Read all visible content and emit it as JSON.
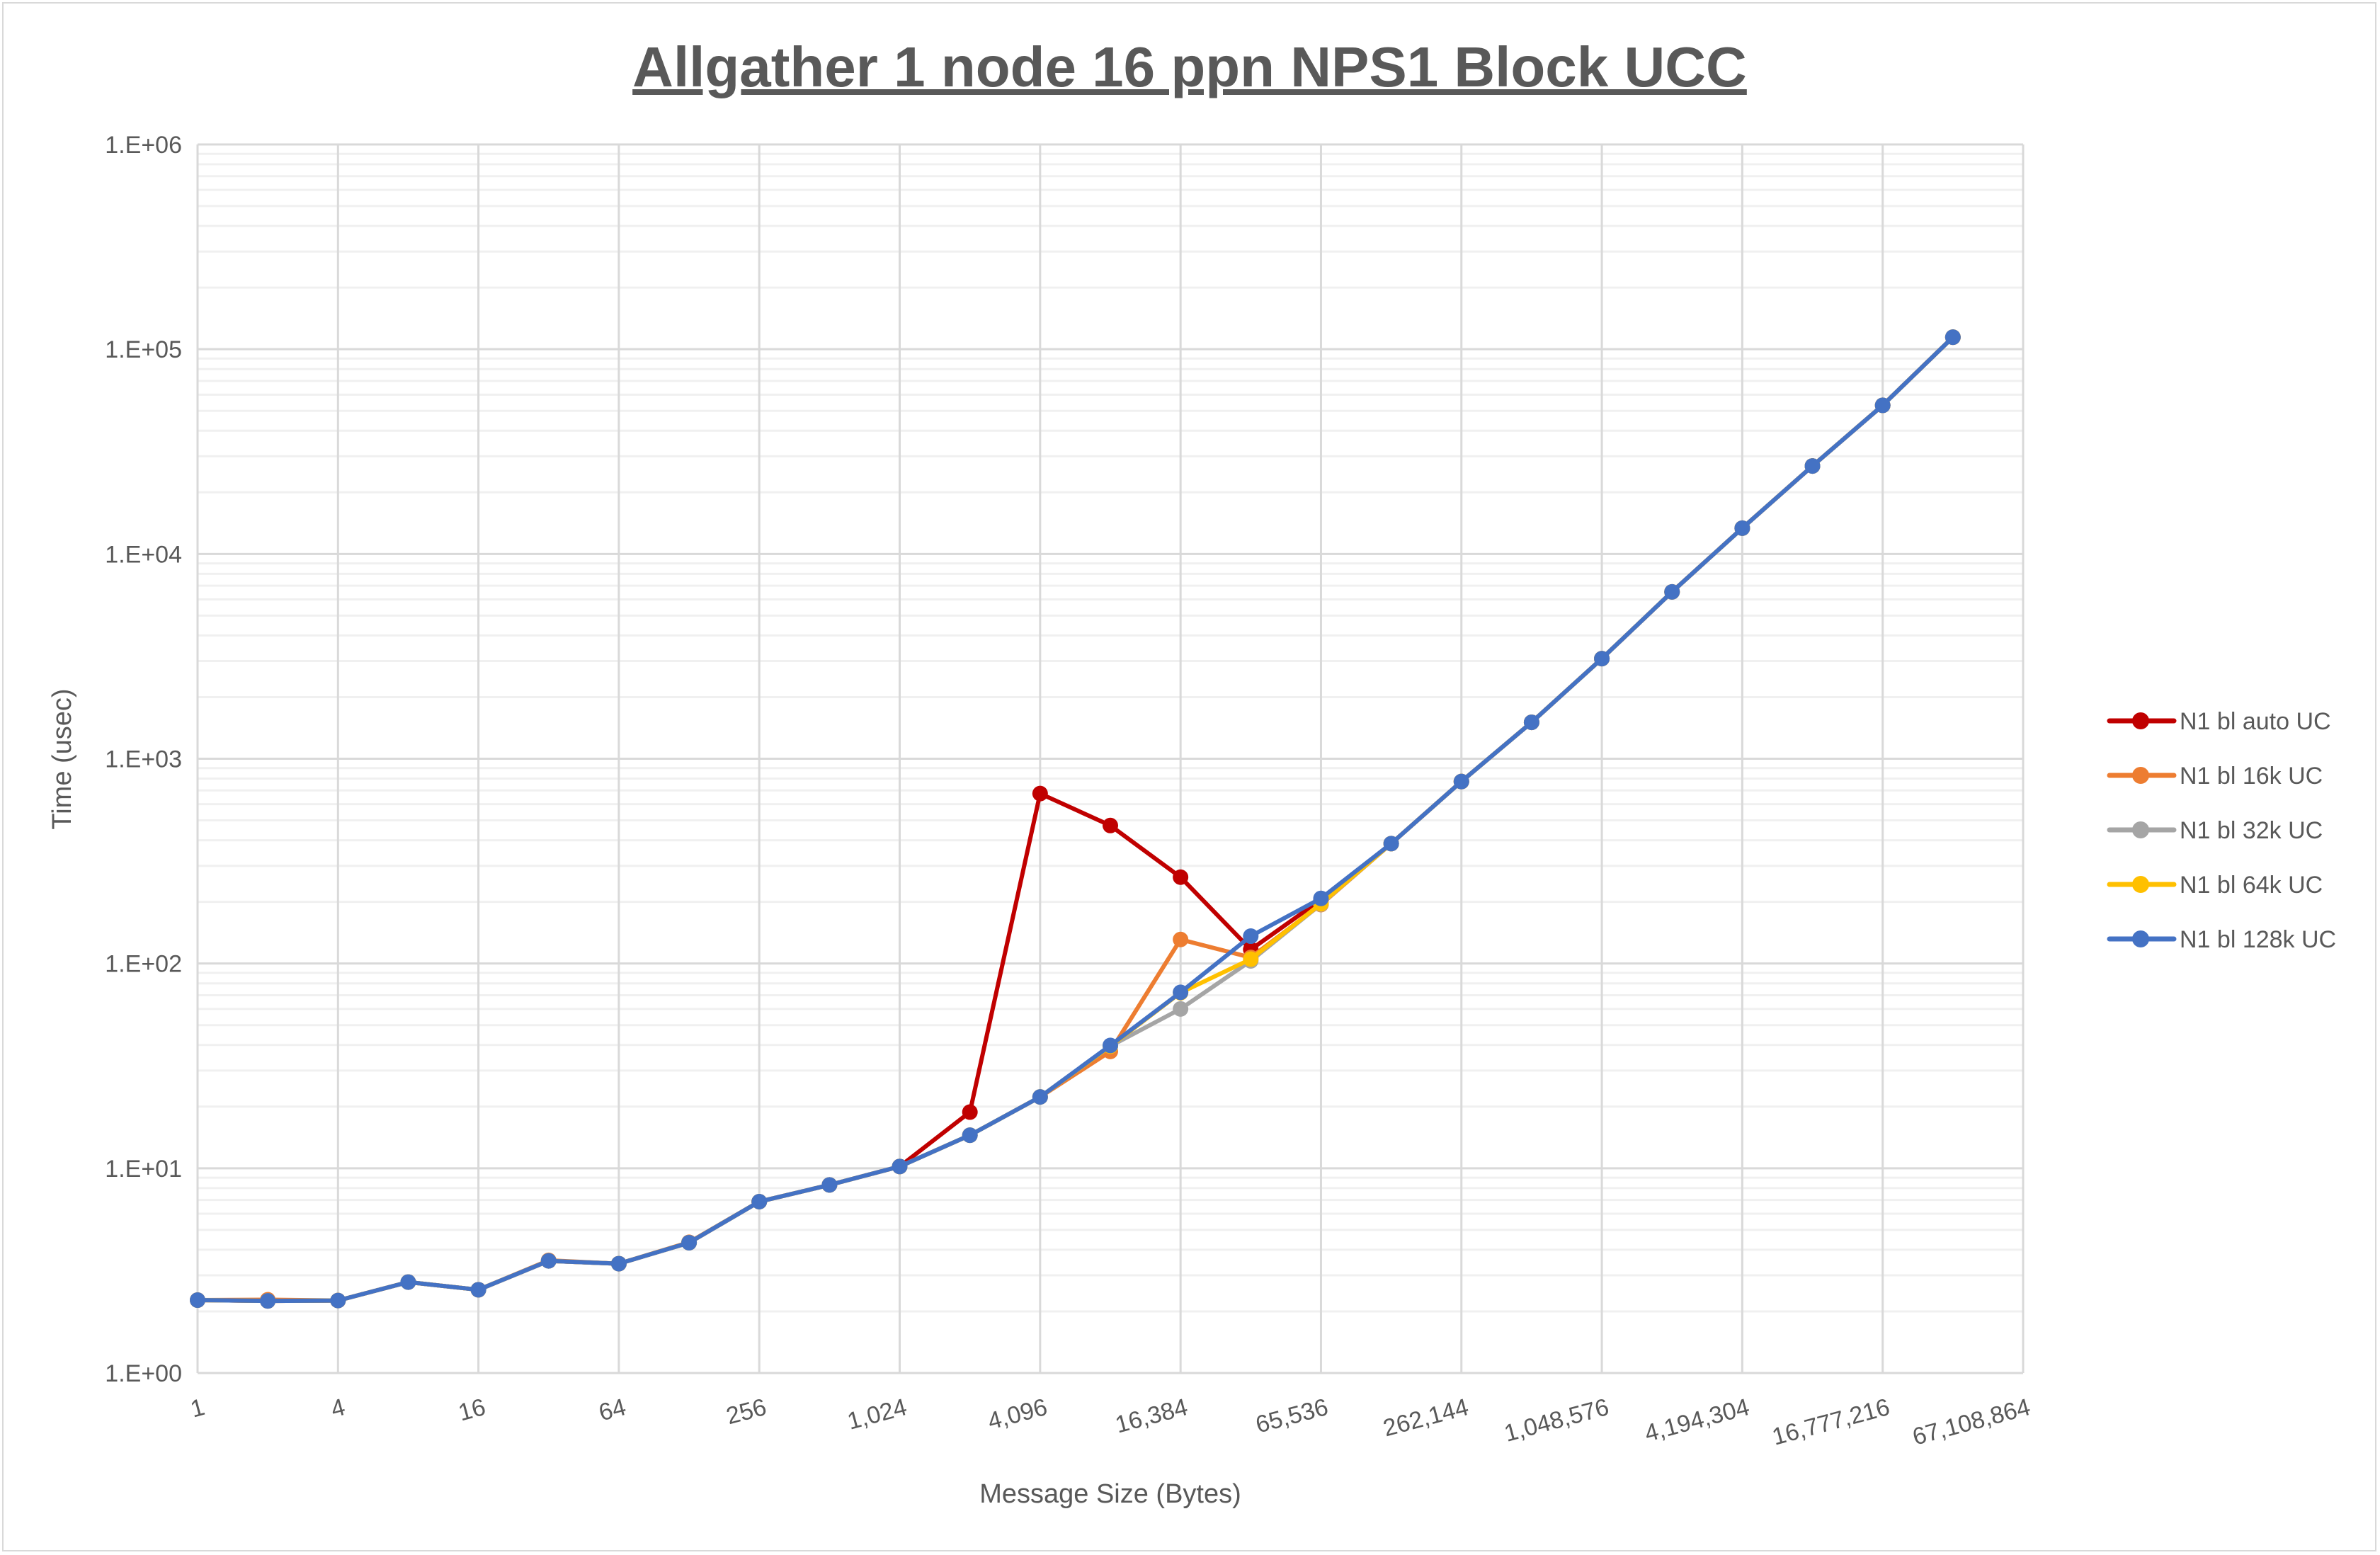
{
  "chart_data": {
    "type": "line",
    "title": "Allgather 1 node 16 ppn NPS1 Block UCC",
    "xlabel": "Message Size (Bytes)",
    "ylabel": "Time (usec)",
    "x_scale": "log2",
    "y_scale": "log10",
    "xlim": [
      1,
      67108864
    ],
    "ylim": [
      1,
      1000000
    ],
    "grid": true,
    "legend_position": "right",
    "x_tick_labels": [
      "1",
      "4",
      "16",
      "64",
      "256",
      "1,024",
      "4,096",
      "16,384",
      "65,536",
      "262,144",
      "1,048,576",
      "4,194,304",
      "16,777,216",
      "67,108,864"
    ],
    "y_tick_labels": [
      "1.E+00",
      "1.E+01",
      "1.E+02",
      "1.E+03",
      "1.E+04",
      "1.E+05",
      "1.E+06"
    ],
    "x": [
      1,
      2,
      4,
      8,
      16,
      32,
      64,
      128,
      256,
      512,
      1024,
      2048,
      4096,
      8192,
      16384,
      32768,
      65536,
      131072,
      262144,
      524288,
      1048576,
      2097152,
      4194304,
      8388608,
      16777216,
      33554432
    ],
    "series": [
      {
        "name": "N1 bl auto UC",
        "color": "#C00000",
        "values": [
          2.27,
          2.25,
          2.26,
          2.78,
          2.55,
          3.53,
          3.42,
          4.33,
          6.87,
          8.29,
          10.2,
          18.8,
          676,
          472,
          264,
          117,
          205,
          385,
          774,
          1506,
          3083,
          6530,
          13370,
          26900,
          53200,
          114500
        ]
      },
      {
        "name": "N1 bl 16k UC",
        "color": "#ED7D31",
        "values": [
          2.27,
          2.28,
          2.26,
          2.78,
          2.55,
          3.55,
          3.42,
          4.35,
          6.87,
          8.29,
          10.2,
          14.5,
          22.3,
          37.2,
          131,
          107,
          194,
          385,
          774,
          1506,
          3083,
          6530,
          13370,
          26900,
          53200,
          114500
        ]
      },
      {
        "name": "N1 bl 32k UC",
        "color": "#A5A5A5",
        "values": [
          2.27,
          2.25,
          2.26,
          2.78,
          2.55,
          3.53,
          3.42,
          4.33,
          6.87,
          8.29,
          10.2,
          14.5,
          22.3,
          39.5,
          60,
          103,
          195,
          385,
          774,
          1506,
          3083,
          6530,
          13370,
          26900,
          53200,
          114500
        ]
      },
      {
        "name": "N1 bl 64k UC",
        "color": "#FFC000",
        "values": [
          2.27,
          2.25,
          2.26,
          2.78,
          2.55,
          3.53,
          3.42,
          4.33,
          6.87,
          8.29,
          10.2,
          14.5,
          22.3,
          39.5,
          72,
          105,
          196,
          385,
          774,
          1506,
          3083,
          6530,
          13370,
          26900,
          53200,
          114500
        ]
      },
      {
        "name": "N1 bl 128k UC",
        "color": "#4472C4",
        "values": [
          2.27,
          2.25,
          2.26,
          2.78,
          2.55,
          3.53,
          3.42,
          4.33,
          6.87,
          8.29,
          10.2,
          14.5,
          22.3,
          39.8,
          72.3,
          136,
          208,
          385,
          774,
          1506,
          3083,
          6530,
          13370,
          26900,
          53200,
          114500
        ]
      }
    ]
  }
}
